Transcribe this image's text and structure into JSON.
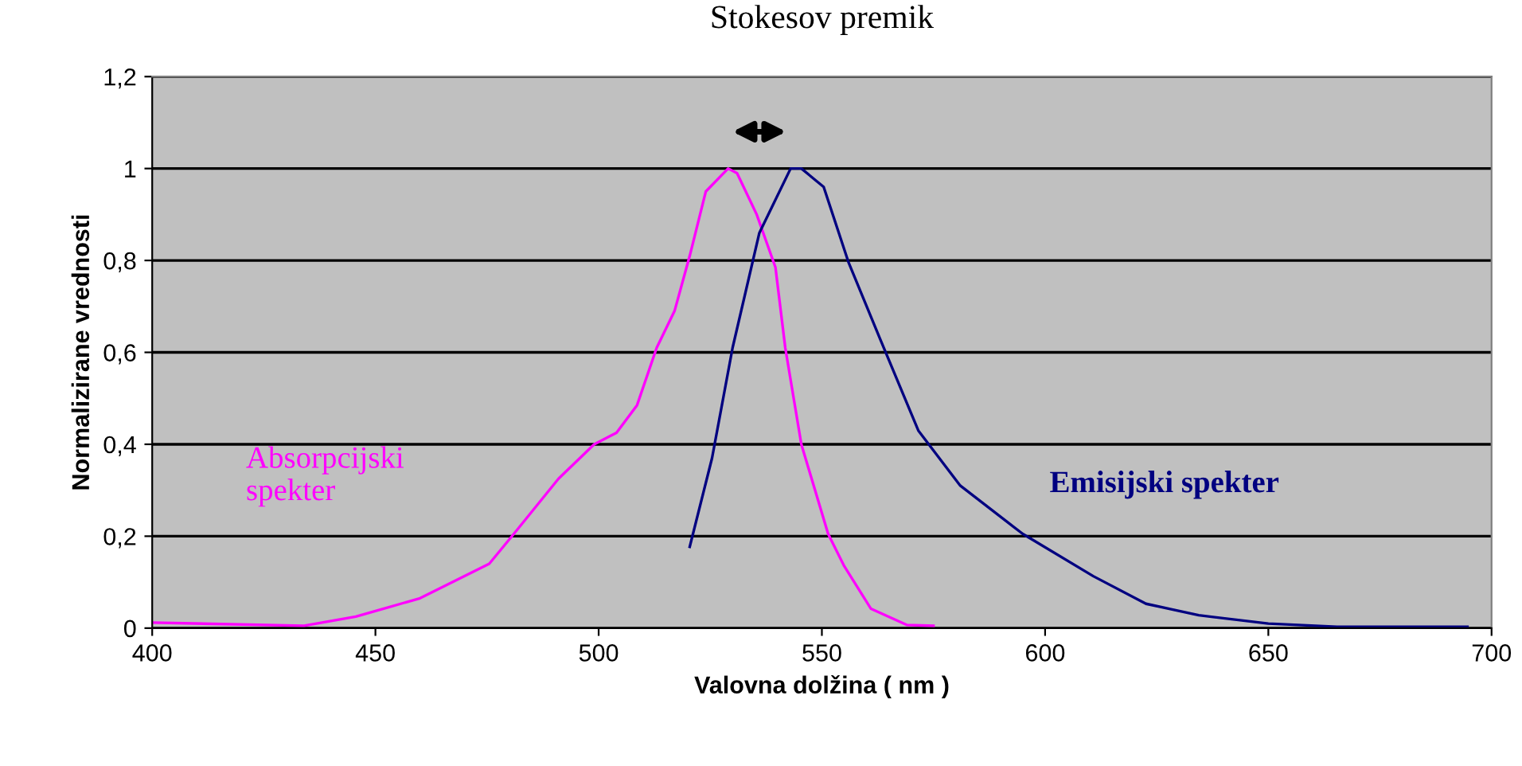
{
  "chart_data": {
    "type": "line",
    "title": "Stokesov premik",
    "xlabel": "Valovna dolžina ( nm )",
    "ylabel": "Normalizirane vrednosti",
    "xlim": [
      400,
      700
    ],
    "xticks": [
      400,
      450,
      500,
      550,
      600,
      650,
      700
    ],
    "ylim": [
      0,
      1.2
    ],
    "yticks": [
      {
        "value": 0,
        "label": "0"
      },
      {
        "value": 0.2,
        "label": "0,2"
      },
      {
        "value": 0.4,
        "label": "0,4"
      },
      {
        "value": 0.6,
        "label": "0,6"
      },
      {
        "value": 0.8,
        "label": "0,8"
      },
      {
        "value": 1,
        "label": "1"
      },
      {
        "value": 1.2,
        "label": "1,2"
      }
    ],
    "grid": "y",
    "legend": false,
    "marker": "none",
    "line_style": "solid",
    "series": [
      {
        "name": "Absorpcijski\nspekter",
        "color": "#ff00ff",
        "x": [
          400,
          434,
          445.6,
          460,
          475.5,
          481,
          491,
          499,
          504,
          508.6,
          513,
          517,
          520.4,
          524,
          529,
          531,
          535.4,
          539.6,
          541.8,
          545.4,
          551.4,
          555,
          561,
          569,
          575
        ],
        "values": [
          0.012,
          0.005,
          0.025,
          0.065,
          0.14,
          0.205,
          0.325,
          0.4,
          0.425,
          0.485,
          0.61,
          0.69,
          0.81,
          0.95,
          1.0,
          0.99,
          0.9,
          0.785,
          0.61,
          0.4,
          0.205,
          0.135,
          0.042,
          0.007,
          0.005
        ]
      },
      {
        "name": "Emisijski spekter",
        "color": "#000080",
        "x": [
          520.4,
          525.4,
          530,
          536,
          543,
          545.4,
          550.4,
          556,
          563,
          571.6,
          581,
          595,
          610.8,
          622.6,
          634.4,
          650,
          665.4,
          694.6
        ],
        "values": [
          0.177,
          0.37,
          0.61,
          0.86,
          1.0,
          1.0,
          0.96,
          0.795,
          0.63,
          0.43,
          0.31,
          0.205,
          0.113,
          0.053,
          0.028,
          0.01,
          0.003,
          0.003
        ]
      }
    ]
  }
}
